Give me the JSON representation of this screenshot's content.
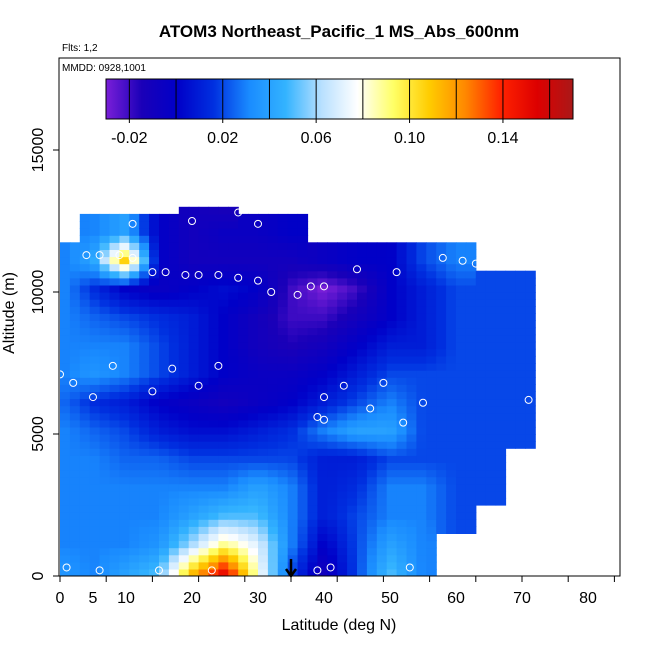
{
  "chart_data": {
    "type": "heatmap",
    "title": "ATOM3 Northeast_Pacific_1 MS_Abs_600nm",
    "flights_label": "Flts: 1,2",
    "dates_label": "MMDD: 0928,1001",
    "xlabel": "Latitude (deg N)",
    "ylabel": "Altitude (m)",
    "xlim": [
      0,
      85
    ],
    "ylim": [
      0,
      18000
    ],
    "x_ticks": [
      0,
      5,
      10,
      20,
      30,
      40,
      50,
      60,
      70,
      80
    ],
    "x_minor_ticks": [
      0,
      7,
      14,
      21,
      28,
      35,
      42,
      49,
      56,
      63,
      70,
      77,
      84
    ],
    "y_ticks": [
      0,
      5000,
      10000,
      15000
    ],
    "colorbar": {
      "range": [
        -0.03,
        0.17
      ],
      "ticks": [
        -0.02,
        0.02,
        0.06,
        0.1,
        0.14
      ],
      "tick_labels": [
        "-0.02",
        "0.02",
        "0.06",
        "0.10",
        "0.14"
      ],
      "palette": [
        "#7a1fd8",
        "#1a00b8",
        "#0000c8",
        "#0030e0",
        "#1a8cff",
        "#33b3ff",
        "#b8e0ff",
        "#ffffff",
        "#ffff66",
        "#ffcc00",
        "#ff8800",
        "#ff2200",
        "#dd0000",
        "#aa1818"
      ]
    },
    "altitude_bins_m": [
      0,
      1000,
      2000,
      3000,
      4000,
      5000,
      6000,
      7000,
      8000,
      9000,
      10000,
      11000,
      12000,
      13000
    ],
    "profile": {
      "latitudes": [
        1,
        5,
        10,
        15,
        20,
        25,
        30,
        35,
        40,
        45,
        50,
        55,
        60,
        65,
        70
      ],
      "values": [
        [
          0.035,
          0.03,
          0.04,
          0.05,
          0.11,
          0.15,
          0.08,
          0.02,
          -0.01,
          0.02,
          0.05,
          0.03,
          null,
          null,
          null
        ],
        [
          0.03,
          0.03,
          0.03,
          0.035,
          0.06,
          0.09,
          0.07,
          0.03,
          0.0,
          0.02,
          0.04,
          0.03,
          null,
          null,
          null
        ],
        [
          0.03,
          0.03,
          0.03,
          0.03,
          0.04,
          0.05,
          0.05,
          0.03,
          0.01,
          0.02,
          0.03,
          0.03,
          0.02,
          null,
          null
        ],
        [
          0.03,
          0.03,
          0.03,
          0.03,
          0.03,
          0.03,
          0.04,
          0.03,
          0.01,
          0.015,
          0.03,
          0.03,
          0.02,
          0.02,
          null
        ],
        [
          0.03,
          0.03,
          0.025,
          0.025,
          0.02,
          0.02,
          0.02,
          0.02,
          0.01,
          0.01,
          0.02,
          0.02,
          0.02,
          0.02,
          null
        ],
        [
          0.03,
          0.025,
          0.02,
          0.01,
          0.005,
          0.005,
          0.01,
          0.015,
          0.03,
          0.04,
          0.04,
          0.02,
          0.02,
          0.02,
          0.02
        ],
        [
          0.025,
          0.015,
          0.01,
          0.0,
          -0.005,
          -0.01,
          -0.005,
          0.0,
          0.01,
          0.02,
          0.03,
          0.02,
          0.02,
          0.02,
          0.02
        ],
        [
          0.03,
          0.035,
          0.03,
          0.02,
          0.01,
          0.0,
          -0.005,
          -0.005,
          0.0,
          0.01,
          0.02,
          0.02,
          0.02,
          0.02,
          0.02
        ],
        [
          0.03,
          0.03,
          0.03,
          0.02,
          0.01,
          0.0,
          -0.01,
          -0.015,
          -0.01,
          0.0,
          0.01,
          0.01,
          0.02,
          0.02,
          0.02
        ],
        [
          0.03,
          0.025,
          0.02,
          0.015,
          0.01,
          0.0,
          -0.01,
          -0.02,
          -0.02,
          -0.01,
          0.0,
          0.01,
          0.02,
          0.02,
          0.02
        ],
        [
          0.03,
          0.015,
          0.0,
          -0.005,
          0.0,
          0.005,
          0.0,
          -0.02,
          -0.03,
          -0.02,
          0.0,
          0.01,
          0.02,
          0.02,
          0.02
        ],
        [
          0.03,
          0.04,
          0.11,
          0.0,
          -0.01,
          -0.01,
          -0.01,
          -0.01,
          -0.005,
          0.0,
          0.0,
          0.02,
          0.03,
          null,
          null
        ],
        [
          null,
          0.03,
          0.04,
          0.0,
          -0.01,
          -0.005,
          -0.005,
          0.0,
          null,
          null,
          null,
          null,
          null,
          null,
          null
        ],
        [
          null,
          null,
          null,
          null,
          -0.01,
          -0.015,
          null,
          null,
          null,
          null,
          null,
          null,
          null,
          null,
          null
        ]
      ]
    },
    "observations": [
      {
        "lat": 1,
        "alt": 300
      },
      {
        "lat": 6,
        "alt": 200
      },
      {
        "lat": 15,
        "alt": 200
      },
      {
        "lat": 23,
        "alt": 200
      },
      {
        "lat": 39,
        "alt": 200
      },
      {
        "lat": 41,
        "alt": 300
      },
      {
        "lat": 53,
        "alt": 300
      },
      {
        "lat": 2,
        "alt": 6800
      },
      {
        "lat": 5,
        "alt": 6300
      },
      {
        "lat": 14,
        "alt": 6500
      },
      {
        "lat": 21,
        "alt": 6700
      },
      {
        "lat": 39,
        "alt": 5600
      },
      {
        "lat": 40,
        "alt": 5500
      },
      {
        "lat": 40,
        "alt": 6300
      },
      {
        "lat": 43,
        "alt": 6700
      },
      {
        "lat": 47,
        "alt": 5900
      },
      {
        "lat": 49,
        "alt": 6800
      },
      {
        "lat": 52,
        "alt": 5400
      },
      {
        "lat": 55,
        "alt": 6100
      },
      {
        "lat": 71,
        "alt": 6200
      },
      {
        "lat": 0,
        "alt": 7100
      },
      {
        "lat": 8,
        "alt": 7400
      },
      {
        "lat": 17,
        "alt": 7300
      },
      {
        "lat": 24,
        "alt": 7400
      },
      {
        "lat": 2,
        "alt": 11900
      },
      {
        "lat": 4,
        "alt": 11300
      },
      {
        "lat": 6,
        "alt": 11300
      },
      {
        "lat": 9,
        "alt": 11300
      },
      {
        "lat": 11,
        "alt": 11200
      },
      {
        "lat": 11,
        "alt": 12400
      },
      {
        "lat": 14,
        "alt": 10700
      },
      {
        "lat": 16,
        "alt": 10700
      },
      {
        "lat": 19,
        "alt": 10600
      },
      {
        "lat": 21,
        "alt": 10600
      },
      {
        "lat": 24,
        "alt": 10600
      },
      {
        "lat": 27,
        "alt": 10500
      },
      {
        "lat": 30,
        "alt": 10400
      },
      {
        "lat": 32,
        "alt": 10000
      },
      {
        "lat": 36,
        "alt": 9900
      },
      {
        "lat": 38,
        "alt": 10200
      },
      {
        "lat": 40,
        "alt": 10200
      },
      {
        "lat": 45,
        "alt": 10800
      },
      {
        "lat": 51,
        "alt": 10700
      },
      {
        "lat": 58,
        "alt": 11200
      },
      {
        "lat": 61,
        "alt": 11100
      },
      {
        "lat": 63,
        "alt": 11000
      },
      {
        "lat": 66,
        "alt": 11000
      },
      {
        "lat": 69,
        "alt": 10900
      },
      {
        "lat": 20,
        "alt": 12500
      },
      {
        "lat": 27,
        "alt": 12800
      },
      {
        "lat": 30,
        "alt": 12400
      }
    ],
    "marker_arrow": {
      "lat": 35,
      "alt_top": 600,
      "alt_bottom": 0
    },
    "grid": false,
    "legend": "colorbar-top-inset"
  }
}
